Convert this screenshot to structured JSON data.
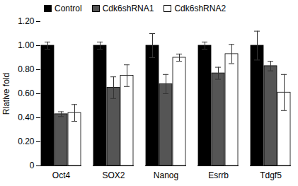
{
  "chart_data": {
    "type": "bar",
    "categories": [
      "Oct4",
      "SOX2",
      "Nanog",
      "Esrrb",
      "Tdgf5"
    ],
    "series": [
      {
        "name": "Control",
        "color": "#000000",
        "values": [
          1.0,
          1.0,
          1.0,
          1.0,
          1.0
        ],
        "errors": [
          0.03,
          0.03,
          0.1,
          0.03,
          0.12
        ]
      },
      {
        "name": "Cdk6shRNA1",
        "color": "#555555",
        "values": [
          0.43,
          0.65,
          0.68,
          0.77,
          0.83
        ],
        "errors": [
          0.02,
          0.09,
          0.08,
          0.05,
          0.04
        ]
      },
      {
        "name": "Cdk6shRNA2",
        "color": "#ffffff",
        "values": [
          0.44,
          0.75,
          0.9,
          0.93,
          0.61
        ],
        "errors": [
          0.07,
          0.09,
          0.03,
          0.08,
          0.15
        ]
      }
    ],
    "y_label": "Rlative fold",
    "ylim": [
      0,
      1.2
    ],
    "yticks": [
      0,
      {
        "value": 0.2,
        "label": "0.20"
      },
      {
        "value": 0.4,
        "label": "0.40"
      },
      {
        "value": 0.6,
        "label": "0.60"
      },
      {
        "value": 0.8,
        "label": "0.80"
      },
      {
        "value": 1.0,
        "label": "1.00"
      },
      {
        "value": 1.2,
        "label": "1.20"
      }
    ],
    "legend": "top",
    "grid": false
  }
}
